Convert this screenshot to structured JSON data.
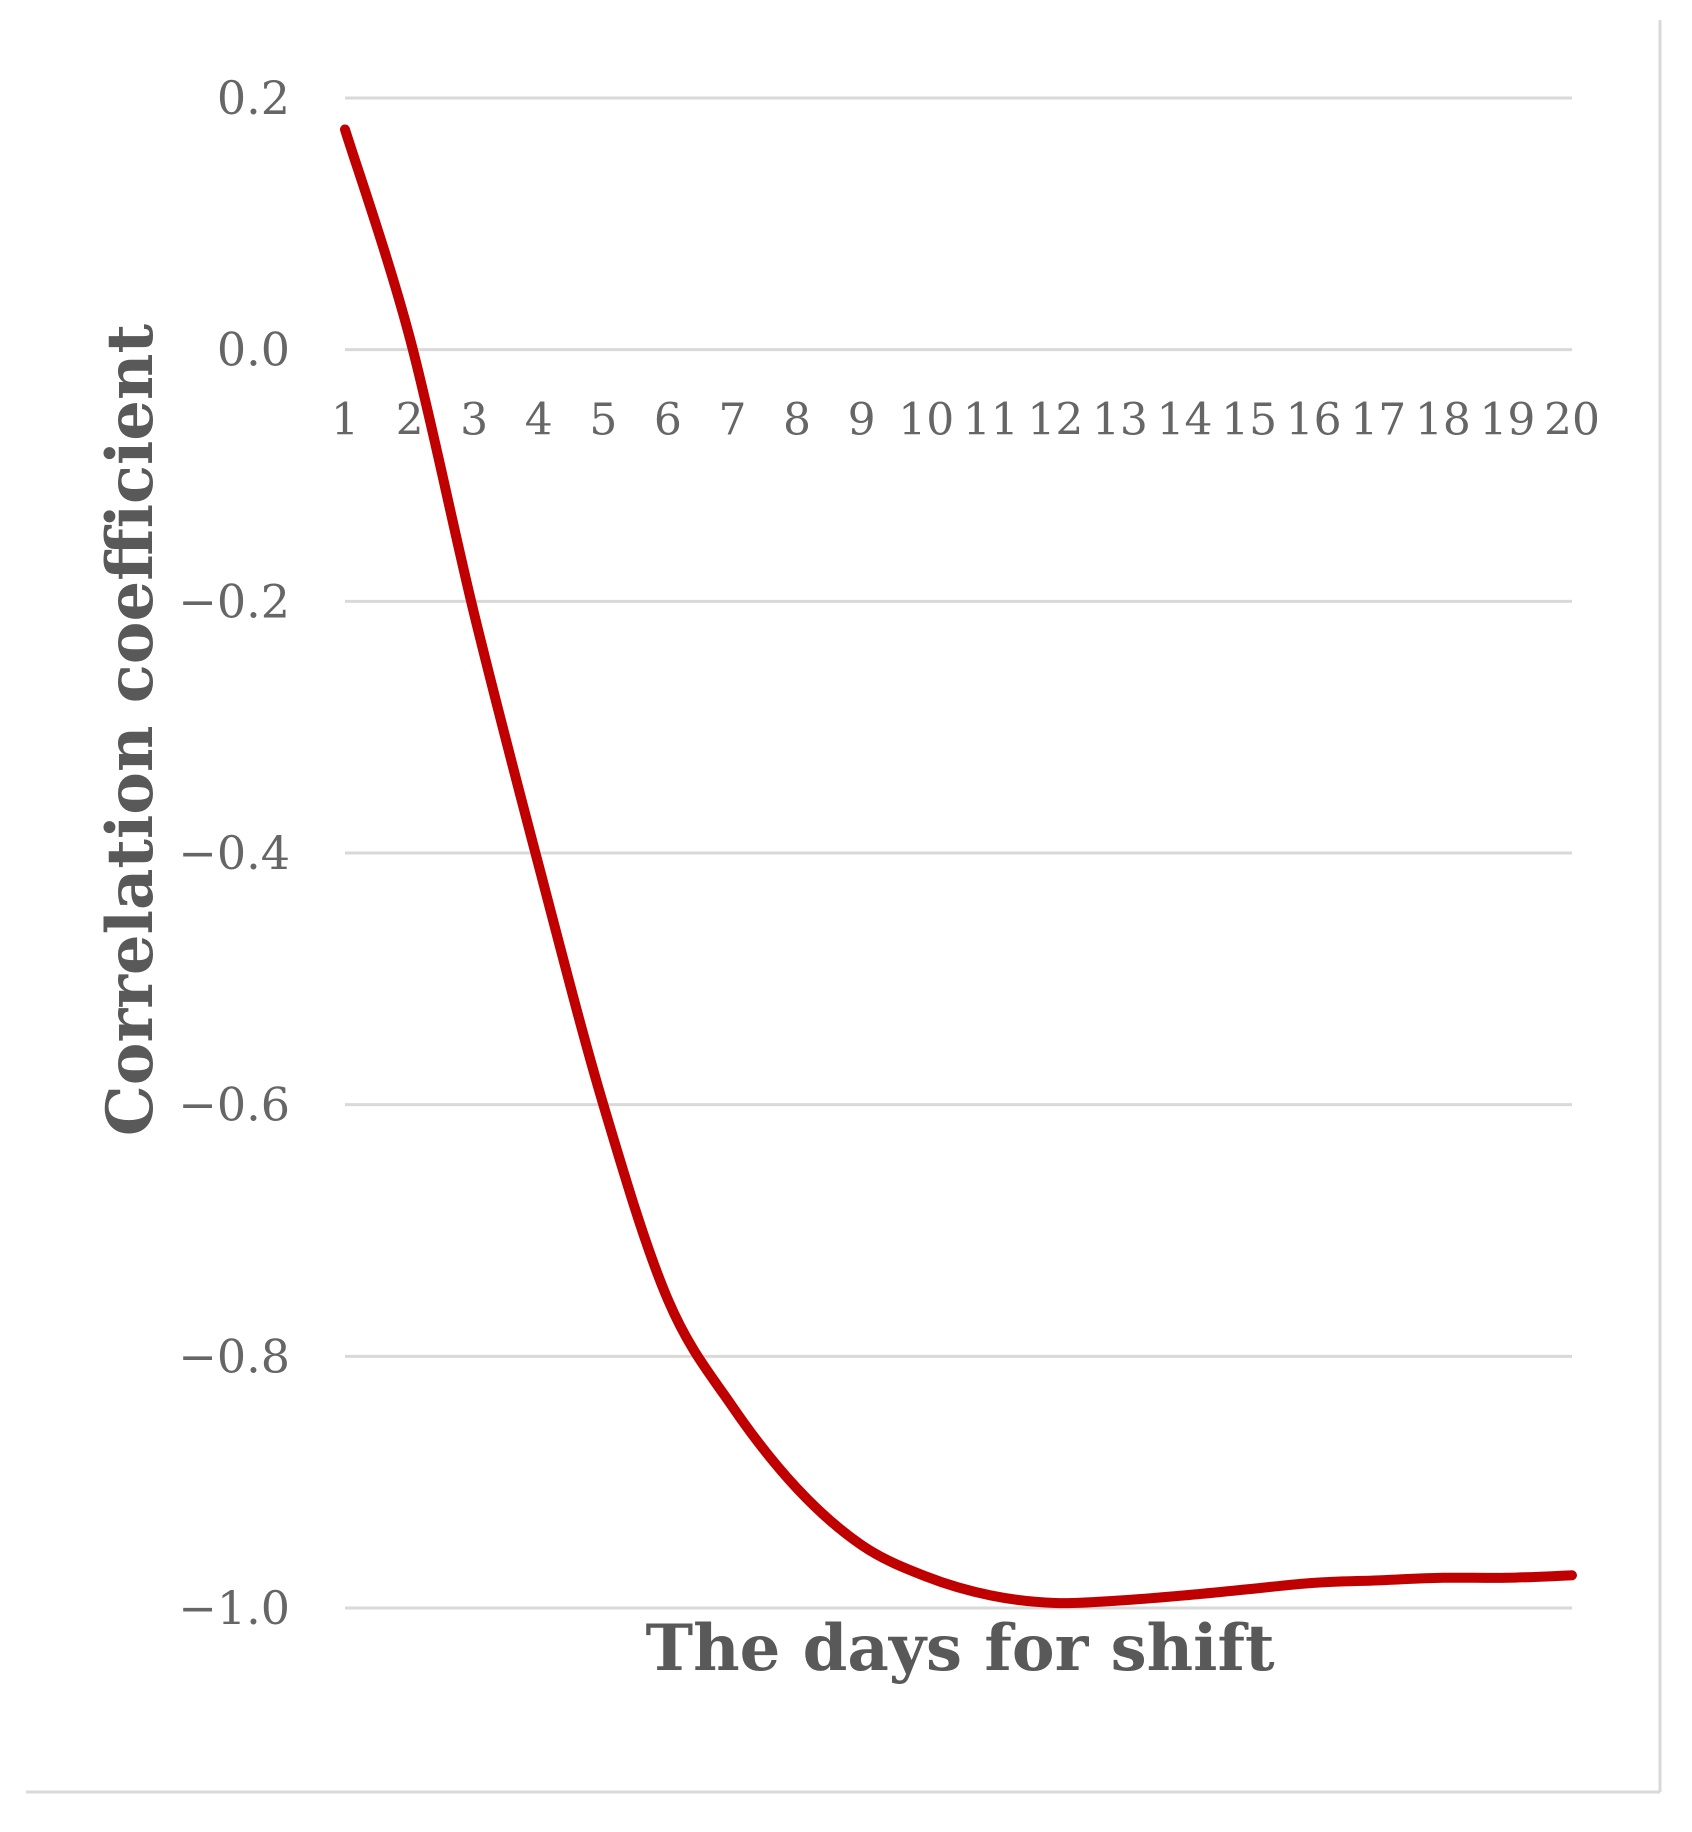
{
  "chart_data": {
    "type": "line",
    "title": "",
    "xlabel": "The days for shift",
    "ylabel": "Correlation coefficient",
    "x": [
      1,
      2,
      3,
      4,
      5,
      6,
      7,
      8,
      9,
      10,
      11,
      12,
      13,
      14,
      15,
      16,
      17,
      18,
      19,
      20
    ],
    "series": [
      {
        "name": "",
        "color": "#c00000",
        "values": [
          0.175,
          0.01,
          -0.21,
          -0.41,
          -0.6,
          -0.755,
          -0.84,
          -0.905,
          -0.95,
          -0.975,
          -0.99,
          -0.996,
          -0.994,
          -0.99,
          -0.985,
          -0.98,
          -0.978,
          -0.976,
          -0.976,
          -0.974
        ]
      }
    ],
    "ylim": [
      -1.0,
      0.2
    ],
    "yticks": [
      0.2,
      0.0,
      -0.2,
      -0.4,
      -0.6,
      -0.8,
      -1.0
    ],
    "ytick_labels": [
      "0.2",
      "0.0",
      "−0.2",
      "−0.4",
      "−0.6",
      "−0.8",
      "−1.0"
    ],
    "xtick_labels": [
      "1",
      "2",
      "3",
      "4",
      "5",
      "6",
      "7",
      "8",
      "9",
      "10",
      "11",
      "12",
      "13",
      "14",
      "15",
      "16",
      "17",
      "18",
      "19",
      "20"
    ],
    "grid": true,
    "legend": "none"
  }
}
